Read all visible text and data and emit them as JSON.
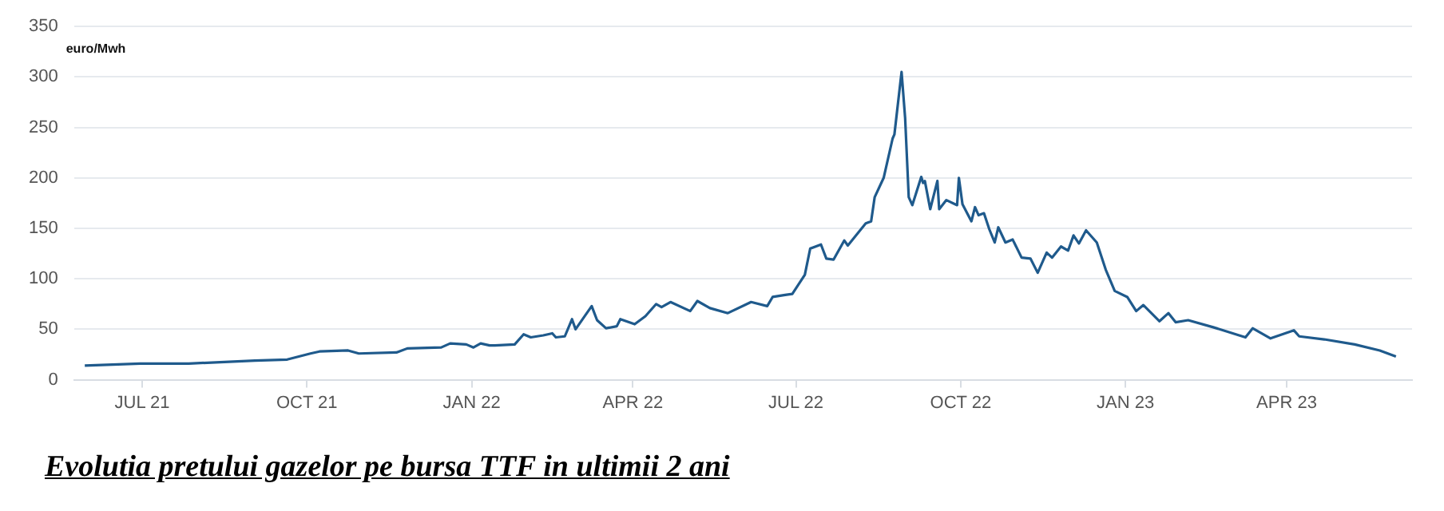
{
  "chart_data": {
    "type": "line",
    "title": "Evolutia pretului gazelor pe bursa TTF in ultimii 2 ani",
    "ylabel": "euro/Mwh",
    "xlim": [
      "2021-05-24",
      "2023-06-10"
    ],
    "xticks": [
      {
        "value": "2021-07-01",
        "label": "JUL 21"
      },
      {
        "value": "2021-10-01",
        "label": "OCT 21"
      },
      {
        "value": "2022-01-01",
        "label": "JAN 22"
      },
      {
        "value": "2022-04-01",
        "label": "APR 22"
      },
      {
        "value": "2022-07-01",
        "label": "JUL 22"
      },
      {
        "value": "2022-10-01",
        "label": "OCT 22"
      },
      {
        "value": "2023-01-01",
        "label": "JAN 23"
      },
      {
        "value": "2023-04-01",
        "label": "APR 23"
      }
    ],
    "ylim": [
      0,
      350
    ],
    "yticks": [
      0,
      50,
      100,
      150,
      200,
      250,
      300,
      350
    ],
    "grid": "y",
    "legend": false,
    "marker": "none",
    "line_style": "solid",
    "series": [
      {
        "color": "#1f5a8c",
        "x": [
          "2021-05-30",
          "2021-06-30",
          "2021-07-27",
          "2021-09-02",
          "2021-09-20",
          "2021-10-03",
          "2021-10-08",
          "2021-10-24",
          "2021-10-30",
          "2021-11-20",
          "2021-11-26",
          "2021-12-15",
          "2021-12-20",
          "2021-12-29",
          "2022-01-02",
          "2022-01-06",
          "2022-01-11",
          "2022-01-14",
          "2022-01-25",
          "2022-01-30",
          "2022-02-03",
          "2022-02-10",
          "2022-02-15",
          "2022-02-17",
          "2022-02-22",
          "2022-02-26",
          "2022-02-28",
          "2022-03-09",
          "2022-03-12",
          "2022-03-17",
          "2022-03-23",
          "2022-03-25",
          "2022-04-02",
          "2022-04-08",
          "2022-04-14",
          "2022-04-17",
          "2022-04-22",
          "2022-05-03",
          "2022-05-07",
          "2022-05-14",
          "2022-05-24",
          "2022-06-06",
          "2022-06-15",
          "2022-06-18",
          "2022-06-25",
          "2022-06-29",
          "2022-07-06",
          "2022-07-09",
          "2022-07-15",
          "2022-07-18",
          "2022-07-22",
          "2022-07-28",
          "2022-07-30",
          "2022-08-09",
          "2022-08-12",
          "2022-08-14",
          "2022-08-19",
          "2022-08-24",
          "2022-08-25",
          "2022-08-29",
          "2022-08-31",
          "2022-09-02",
          "2022-09-04",
          "2022-09-09",
          "2022-09-10",
          "2022-09-11",
          "2022-09-14",
          "2022-09-18",
          "2022-09-19",
          "2022-09-23",
          "2022-09-29",
          "2022-09-30",
          "2022-10-02",
          "2022-10-07",
          "2022-10-09",
          "2022-10-11",
          "2022-10-14",
          "2022-10-17",
          "2022-10-20",
          "2022-10-22",
          "2022-10-26",
          "2022-10-30",
          "2022-11-04",
          "2022-11-09",
          "2022-11-13",
          "2022-11-18",
          "2022-11-21",
          "2022-11-26",
          "2022-11-30",
          "2022-12-03",
          "2022-12-06",
          "2022-12-10",
          "2022-12-16",
          "2022-12-21",
          "2022-12-26",
          "2023-01-02",
          "2023-01-07",
          "2023-01-11",
          "2023-01-20",
          "2023-01-25",
          "2023-01-29",
          "2023-02-05",
          "2023-02-19",
          "2023-03-09",
          "2023-03-13",
          "2023-03-23",
          "2023-04-05",
          "2023-04-08",
          "2023-04-22",
          "2023-05-09",
          "2023-05-23",
          "2023-06-01"
        ],
        "values": [
          14,
          16,
          16,
          19,
          20,
          26,
          28,
          29,
          26,
          27,
          31,
          32,
          36,
          35,
          32,
          36,
          34,
          34,
          35,
          45,
          42,
          44,
          46,
          42,
          43,
          60,
          50,
          73,
          59,
          51,
          53,
          60,
          55,
          63,
          75,
          72,
          77,
          68,
          78,
          71,
          66,
          77,
          73,
          82,
          84,
          85,
          104,
          130,
          134,
          120,
          119,
          138,
          133,
          155,
          157,
          181,
          200,
          239,
          243,
          305,
          259,
          181,
          173,
          201,
          195,
          197,
          169,
          197,
          169,
          178,
          173,
          200,
          174,
          157,
          171,
          163,
          165,
          149,
          136,
          151,
          136,
          139,
          121,
          120,
          106,
          126,
          121,
          132,
          128,
          143,
          135,
          148,
          136,
          109,
          88,
          82,
          68,
          74,
          58,
          66,
          57,
          59,
          52,
          42,
          51,
          41,
          49,
          43,
          40,
          35,
          29,
          23
        ]
      }
    ]
  }
}
